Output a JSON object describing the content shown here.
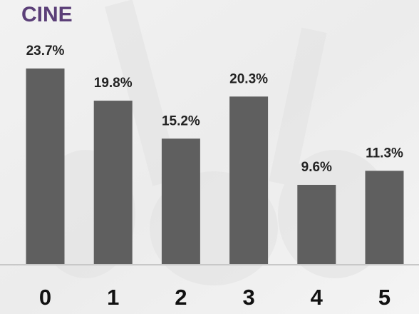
{
  "chart_data": {
    "type": "bar",
    "title": "CINE",
    "categories": [
      "0",
      "1",
      "2",
      "3",
      "4",
      "5"
    ],
    "values": [
      23.7,
      19.8,
      15.2,
      20.3,
      9.6,
      11.3
    ],
    "value_labels": [
      "23.7%",
      "19.8%",
      "15.2%",
      "20.3%",
      "9.6%",
      "11.3%"
    ],
    "color": "#5f5f5f"
  }
}
